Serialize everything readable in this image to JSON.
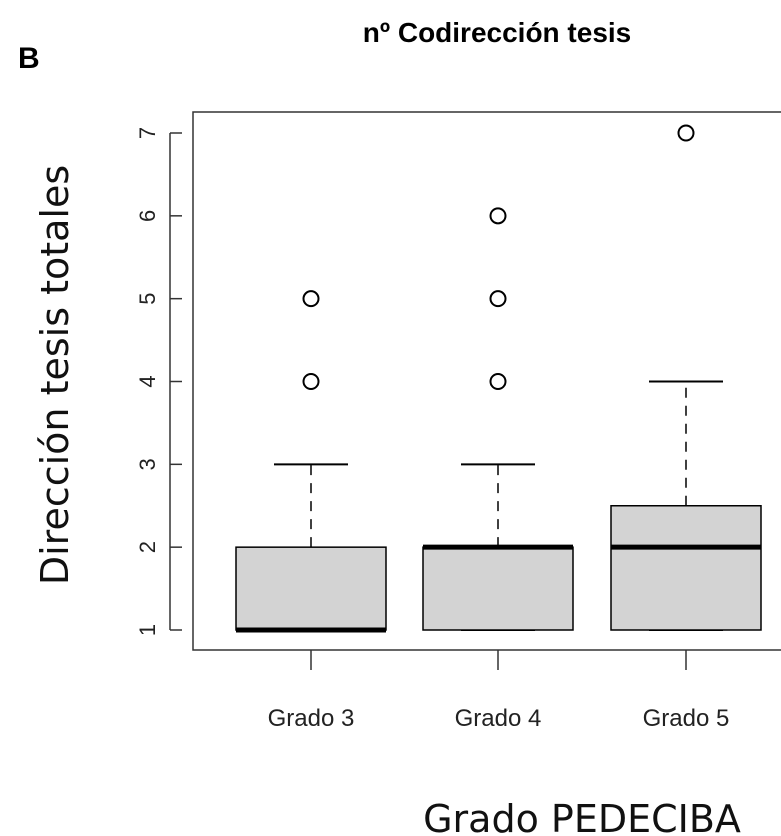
{
  "panel_label": "B",
  "chart_data": {
    "type": "boxplot",
    "title": "nº Codirección tesis",
    "xlabel": "Grado PEDECIBA",
    "ylabel": "Dirección tesis totales",
    "ylim": [
      1,
      7
    ],
    "yticks": [
      "1",
      "2",
      "3",
      "4",
      "5",
      "6",
      "7"
    ],
    "grid": false,
    "categories": [
      "Grado 3",
      "Grado 4",
      "Grado 5"
    ],
    "boxes": [
      {
        "category": "Grado 3",
        "whisker_low": 1,
        "q1": 1,
        "median": 1,
        "q3": 2,
        "whisker_high": 3,
        "outliers": [
          4,
          5
        ]
      },
      {
        "category": "Grado 4",
        "whisker_low": 1,
        "q1": 1,
        "median": 2,
        "q3": 2,
        "whisker_high": 3,
        "outliers": [
          4,
          5,
          6
        ]
      },
      {
        "category": "Grado 5",
        "whisker_low": 1,
        "q1": 1,
        "median": 2,
        "q3": 2.5,
        "whisker_high": 4,
        "outliers": [
          7
        ]
      }
    ],
    "colors": {
      "box_fill": "#d3d3d3",
      "stroke": "#000000"
    }
  }
}
